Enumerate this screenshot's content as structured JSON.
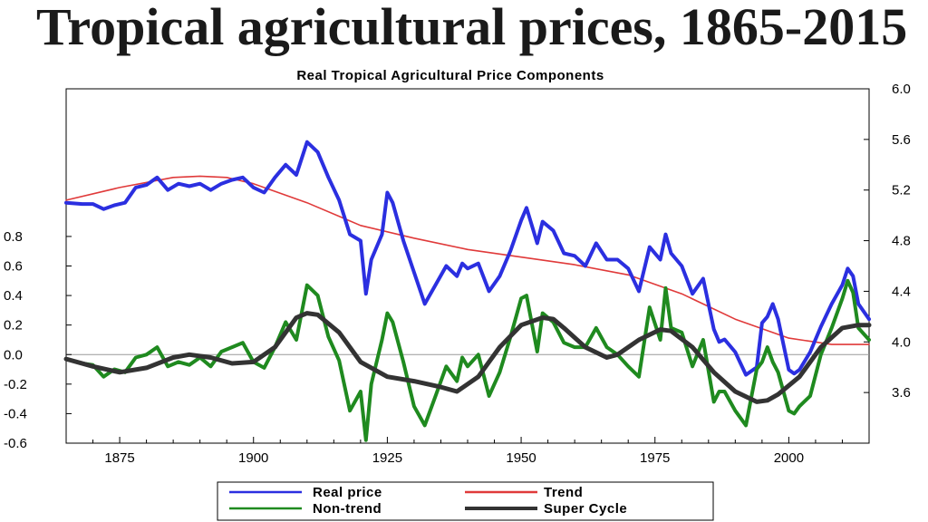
{
  "slide": {
    "title": "Tropical agricultural prices, 1865-2015"
  },
  "chart_data": {
    "type": "line",
    "title": "Real Tropical Agricultural Price Components",
    "x_range": [
      1865,
      2015
    ],
    "x_ticks": [
      1875,
      1900,
      1925,
      1950,
      1975,
      2000
    ],
    "left_axis": {
      "range": [
        -0.6,
        1.8
      ],
      "ticks": [
        "0.8",
        "0.6",
        "0.4",
        "0.2",
        "0.0",
        "-0.2",
        "-0.4",
        "-0.6"
      ]
    },
    "right_axis": {
      "range": [
        3.2,
        6.0
      ],
      "ticks": [
        "6.0",
        "5.6",
        "5.2",
        "4.8",
        "4.4",
        "4.0",
        "3.6"
      ]
    },
    "zero_line": true,
    "legend": {
      "placement": "bottom",
      "entries": [
        {
          "key": "real",
          "label": "Real price",
          "color": "#2b2fe0"
        },
        {
          "key": "trend",
          "label": "Trend",
          "color": "#e03a3a"
        },
        {
          "key": "nontrend",
          "label": "Non-trend",
          "color": "#1f8a1f"
        },
        {
          "key": "super",
          "label": "Super Cycle",
          "color": "#333333"
        }
      ]
    },
    "series": [
      {
        "key": "real",
        "name": "Real price",
        "axis": "right",
        "color": "#2b2fe0",
        "x": [
          1865,
          1868,
          1870,
          1872,
          1874,
          1876,
          1878,
          1880,
          1882,
          1884,
          1886,
          1888,
          1890,
          1892,
          1894,
          1896,
          1898,
          1900,
          1902,
          1904,
          1906,
          1908,
          1910,
          1912,
          1914,
          1916,
          1918,
          1920,
          1921,
          1922,
          1924,
          1925,
          1926,
          1928,
          1930,
          1932,
          1934,
          1936,
          1938,
          1939,
          1940,
          1942,
          1944,
          1946,
          1948,
          1950,
          1951,
          1953,
          1954,
          1956,
          1958,
          1960,
          1962,
          1964,
          1966,
          1968,
          1970,
          1972,
          1974,
          1976,
          1977,
          1978,
          1980,
          1982,
          1984,
          1986,
          1987,
          1988,
          1990,
          1992,
          1994,
          1995,
          1996,
          1997,
          1998,
          2000,
          2001,
          2002,
          2004,
          2006,
          2008,
          2010,
          2011,
          2012,
          2013,
          2015
        ],
        "values": [
          5.1,
          5.09,
          5.09,
          5.05,
          5.08,
          5.1,
          5.22,
          5.24,
          5.3,
          5.2,
          5.25,
          5.23,
          5.25,
          5.2,
          5.25,
          5.28,
          5.3,
          5.22,
          5.18,
          5.3,
          5.4,
          5.32,
          5.58,
          5.5,
          5.3,
          5.12,
          4.85,
          4.8,
          4.38,
          4.65,
          4.85,
          5.18,
          5.1,
          4.8,
          4.55,
          4.3,
          4.45,
          4.6,
          4.52,
          4.62,
          4.58,
          4.62,
          4.4,
          4.52,
          4.72,
          4.96,
          5.06,
          4.78,
          4.95,
          4.88,
          4.7,
          4.68,
          4.6,
          4.78,
          4.65,
          4.65,
          4.58,
          4.4,
          4.75,
          4.65,
          4.85,
          4.7,
          4.6,
          4.38,
          4.5,
          4.1,
          4.0,
          4.02,
          3.92,
          3.74,
          3.8,
          4.15,
          4.2,
          4.3,
          4.18,
          3.78,
          3.75,
          3.78,
          3.92,
          4.12,
          4.3,
          4.45,
          4.58,
          4.52,
          4.3,
          4.18
        ]
      },
      {
        "key": "trend",
        "name": "Trend",
        "axis": "right",
        "color": "#e03a3a",
        "x": [
          1865,
          1875,
          1885,
          1890,
          1895,
          1900,
          1910,
          1920,
          1930,
          1940,
          1950,
          1960,
          1970,
          1980,
          1990,
          2000,
          2008,
          2015
        ],
        "values": [
          5.12,
          5.22,
          5.3,
          5.31,
          5.3,
          5.25,
          5.1,
          4.92,
          4.82,
          4.73,
          4.67,
          4.61,
          4.53,
          4.38,
          4.18,
          4.03,
          3.98,
          3.98
        ]
      },
      {
        "key": "nontrend",
        "name": "Non-trend",
        "axis": "left",
        "color": "#1f8a1f",
        "x": [
          1865,
          1868,
          1870,
          1872,
          1874,
          1876,
          1878,
          1880,
          1882,
          1884,
          1886,
          1888,
          1890,
          1892,
          1894,
          1896,
          1898,
          1900,
          1902,
          1904,
          1906,
          1908,
          1910,
          1912,
          1914,
          1916,
          1918,
          1920,
          1921,
          1922,
          1924,
          1925,
          1926,
          1928,
          1930,
          1932,
          1934,
          1936,
          1938,
          1939,
          1940,
          1942,
          1944,
          1946,
          1948,
          1950,
          1951,
          1953,
          1954,
          1956,
          1958,
          1960,
          1962,
          1964,
          1966,
          1968,
          1970,
          1972,
          1974,
          1976,
          1977,
          1978,
          1980,
          1982,
          1984,
          1986,
          1987,
          1988,
          1990,
          1992,
          1994,
          1995,
          1996,
          1997,
          1998,
          2000,
          2001,
          2002,
          2004,
          2006,
          2008,
          2010,
          2011,
          2012,
          2013,
          2015
        ],
        "values": [
          -0.03,
          -0.06,
          -0.07,
          -0.15,
          -0.1,
          -0.12,
          -0.02,
          0.0,
          0.05,
          -0.08,
          -0.05,
          -0.07,
          -0.02,
          -0.08,
          0.02,
          0.05,
          0.08,
          -0.05,
          -0.09,
          0.05,
          0.22,
          0.1,
          0.47,
          0.4,
          0.12,
          -0.04,
          -0.38,
          -0.25,
          -0.58,
          -0.2,
          0.1,
          0.28,
          0.22,
          -0.05,
          -0.35,
          -0.48,
          -0.28,
          -0.08,
          -0.18,
          -0.02,
          -0.08,
          0.0,
          -0.28,
          -0.12,
          0.12,
          0.38,
          0.4,
          0.02,
          0.28,
          0.22,
          0.08,
          0.05,
          0.05,
          0.18,
          0.05,
          0.0,
          -0.08,
          -0.15,
          0.32,
          0.1,
          0.45,
          0.18,
          0.15,
          -0.08,
          0.1,
          -0.32,
          -0.25,
          -0.25,
          -0.38,
          -0.48,
          -0.1,
          -0.05,
          0.05,
          -0.05,
          -0.12,
          -0.38,
          -0.4,
          -0.35,
          -0.28,
          0.0,
          0.18,
          0.38,
          0.5,
          0.42,
          0.18,
          0.1
        ]
      },
      {
        "key": "super",
        "name": "Super Cycle",
        "axis": "left",
        "color": "#333333",
        "x": [
          1865,
          1870,
          1875,
          1880,
          1885,
          1888,
          1892,
          1896,
          1900,
          1904,
          1908,
          1910,
          1912,
          1916,
          1920,
          1925,
          1930,
          1935,
          1938,
          1942,
          1946,
          1950,
          1954,
          1956,
          1958,
          1962,
          1966,
          1968,
          1972,
          1976,
          1978,
          1982,
          1986,
          1990,
          1994,
          1996,
          1998,
          2002,
          2006,
          2010,
          2013,
          2015
        ],
        "values": [
          -0.03,
          -0.08,
          -0.12,
          -0.09,
          -0.02,
          0.0,
          -0.02,
          -0.06,
          -0.05,
          0.05,
          0.25,
          0.28,
          0.27,
          0.15,
          -0.05,
          -0.15,
          -0.18,
          -0.22,
          -0.25,
          -0.15,
          0.05,
          0.2,
          0.25,
          0.24,
          0.18,
          0.05,
          -0.02,
          0.0,
          0.1,
          0.17,
          0.16,
          0.05,
          -0.12,
          -0.25,
          -0.32,
          -0.31,
          -0.27,
          -0.15,
          0.05,
          0.18,
          0.2,
          0.2
        ]
      }
    ]
  }
}
